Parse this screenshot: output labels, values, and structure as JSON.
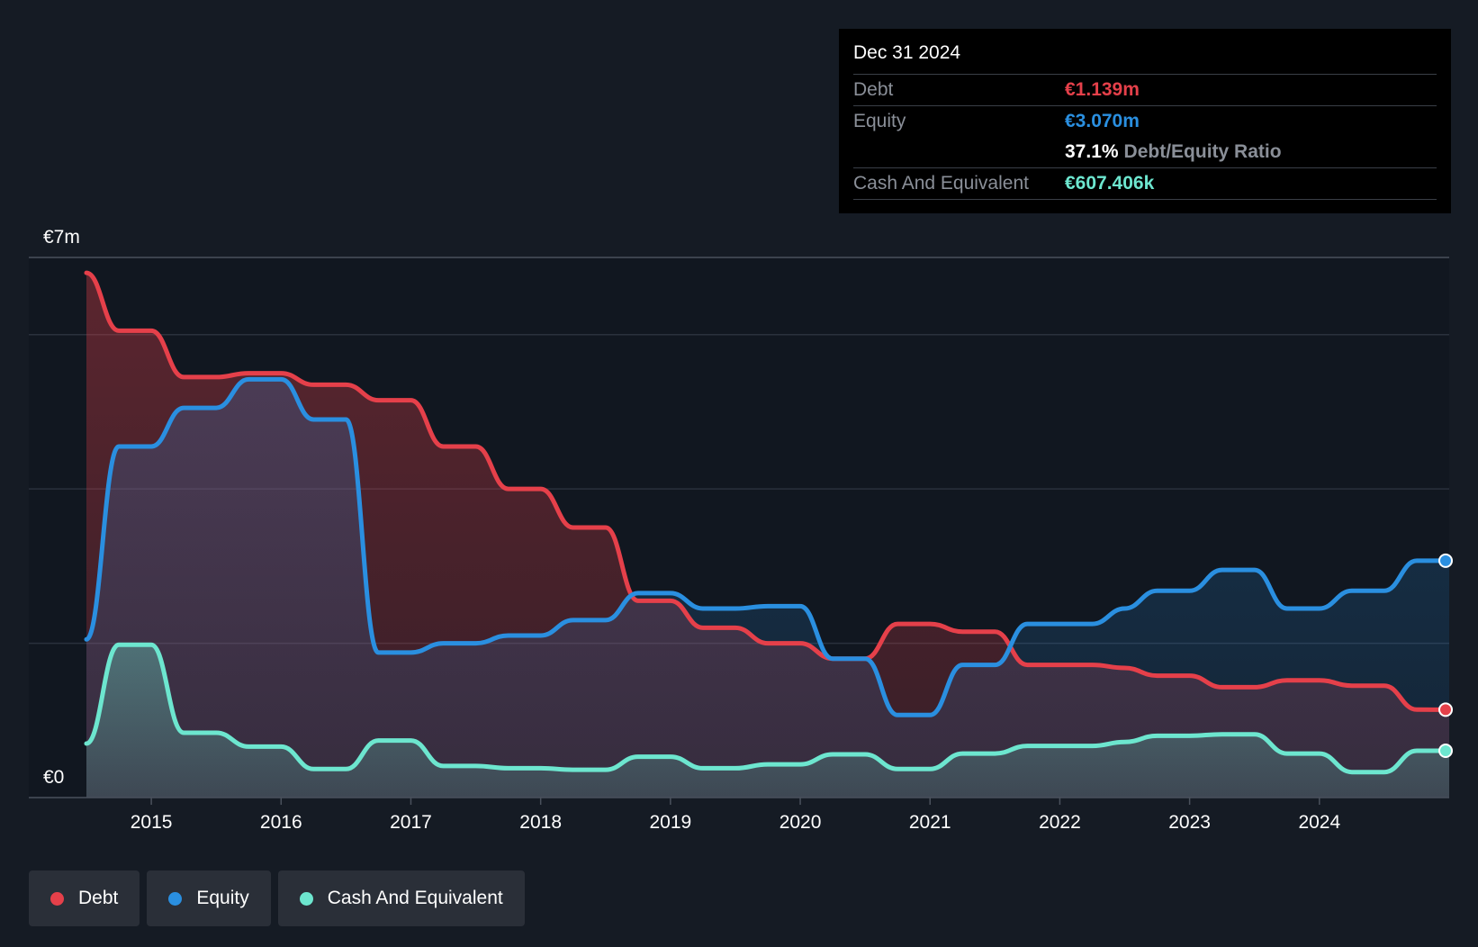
{
  "tooltip": {
    "date": "Dec 31 2024",
    "debt_label": "Debt",
    "debt_value": "€1.139m",
    "equity_label": "Equity",
    "equity_value": "€3.070m",
    "ratio_value": "37.1%",
    "ratio_label": "Debt/Equity Ratio",
    "cash_label": "Cash And Equivalent",
    "cash_value": "€607.406k"
  },
  "legend": [
    {
      "label": "Debt",
      "color": "#e5404a"
    },
    {
      "label": "Equity",
      "color": "#2a8fe0"
    },
    {
      "label": "Cash And Equivalent",
      "color": "#6de6cf"
    }
  ],
  "colors": {
    "background": "#151b24",
    "plot_background": "#111720",
    "debt": "#e5404a",
    "equity": "#2a8fe0",
    "cash": "#6de6cf"
  },
  "chart_data": {
    "type": "line",
    "y_axis_labels": [
      "€0",
      "€7m"
    ],
    "ylim": [
      0,
      7
    ],
    "xlim": [
      2014.5,
      2025.0
    ],
    "x_ticks": [
      2015,
      2016,
      2017,
      2018,
      2019,
      2020,
      2021,
      2022,
      2023,
      2024
    ],
    "grid": true,
    "legend_position": "bottom-left",
    "series": [
      {
        "name": "Debt",
        "points": [
          [
            2014.5,
            6.8
          ],
          [
            2014.75,
            6.05
          ],
          [
            2015.0,
            6.05
          ],
          [
            2015.25,
            5.45
          ],
          [
            2015.5,
            5.45
          ],
          [
            2015.75,
            5.5
          ],
          [
            2016.0,
            5.5
          ],
          [
            2016.25,
            5.35
          ],
          [
            2016.5,
            5.35
          ],
          [
            2016.75,
            5.15
          ],
          [
            2017.0,
            5.15
          ],
          [
            2017.25,
            4.55
          ],
          [
            2017.5,
            4.55
          ],
          [
            2017.75,
            4.0
          ],
          [
            2018.0,
            4.0
          ],
          [
            2018.25,
            3.5
          ],
          [
            2018.5,
            3.5
          ],
          [
            2018.75,
            2.55
          ],
          [
            2019.0,
            2.55
          ],
          [
            2019.25,
            2.2
          ],
          [
            2019.5,
            2.2
          ],
          [
            2019.75,
            2.0
          ],
          [
            2020.0,
            2.0
          ],
          [
            2020.25,
            1.8
          ],
          [
            2020.5,
            1.8
          ],
          [
            2020.75,
            2.25
          ],
          [
            2021.0,
            2.25
          ],
          [
            2021.25,
            2.15
          ],
          [
            2021.5,
            2.15
          ],
          [
            2021.75,
            1.72
          ],
          [
            2022.0,
            1.72
          ],
          [
            2022.25,
            1.72
          ],
          [
            2022.5,
            1.68
          ],
          [
            2022.75,
            1.58
          ],
          [
            2023.0,
            1.58
          ],
          [
            2023.25,
            1.43
          ],
          [
            2023.5,
            1.43
          ],
          [
            2023.75,
            1.52
          ],
          [
            2024.0,
            1.52
          ],
          [
            2024.25,
            1.45
          ],
          [
            2024.5,
            1.45
          ],
          [
            2024.75,
            1.14
          ],
          [
            2025.0,
            1.139
          ]
        ]
      },
      {
        "name": "Equity",
        "points": [
          [
            2014.5,
            2.05
          ],
          [
            2014.75,
            4.55
          ],
          [
            2015.0,
            4.55
          ],
          [
            2015.25,
            5.05
          ],
          [
            2015.5,
            5.05
          ],
          [
            2015.75,
            5.42
          ],
          [
            2016.0,
            5.42
          ],
          [
            2016.25,
            4.9
          ],
          [
            2016.5,
            4.9
          ],
          [
            2016.75,
            1.88
          ],
          [
            2017.0,
            1.88
          ],
          [
            2017.25,
            2.0
          ],
          [
            2017.5,
            2.0
          ],
          [
            2017.75,
            2.1
          ],
          [
            2018.0,
            2.1
          ],
          [
            2018.25,
            2.3
          ],
          [
            2018.5,
            2.3
          ],
          [
            2018.75,
            2.65
          ],
          [
            2019.0,
            2.65
          ],
          [
            2019.25,
            2.45
          ],
          [
            2019.5,
            2.45
          ],
          [
            2019.75,
            2.48
          ],
          [
            2020.0,
            2.48
          ],
          [
            2020.25,
            1.8
          ],
          [
            2020.5,
            1.8
          ],
          [
            2020.75,
            1.07
          ],
          [
            2021.0,
            1.07
          ],
          [
            2021.25,
            1.72
          ],
          [
            2021.5,
            1.72
          ],
          [
            2021.75,
            2.25
          ],
          [
            2022.0,
            2.25
          ],
          [
            2022.25,
            2.25
          ],
          [
            2022.5,
            2.45
          ],
          [
            2022.75,
            2.68
          ],
          [
            2023.0,
            2.68
          ],
          [
            2023.25,
            2.95
          ],
          [
            2023.5,
            2.95
          ],
          [
            2023.75,
            2.45
          ],
          [
            2024.0,
            2.45
          ],
          [
            2024.25,
            2.68
          ],
          [
            2024.5,
            2.68
          ],
          [
            2024.75,
            3.07
          ],
          [
            2025.0,
            3.07
          ]
        ]
      },
      {
        "name": "Cash And Equivalent",
        "points": [
          [
            2014.5,
            0.7
          ],
          [
            2014.75,
            1.98
          ],
          [
            2015.0,
            1.98
          ],
          [
            2015.25,
            0.84
          ],
          [
            2015.5,
            0.84
          ],
          [
            2015.75,
            0.66
          ],
          [
            2016.0,
            0.66
          ],
          [
            2016.25,
            0.37
          ],
          [
            2016.5,
            0.37
          ],
          [
            2016.75,
            0.74
          ],
          [
            2017.0,
            0.74
          ],
          [
            2017.25,
            0.41
          ],
          [
            2017.5,
            0.41
          ],
          [
            2017.75,
            0.38
          ],
          [
            2018.0,
            0.38
          ],
          [
            2018.25,
            0.36
          ],
          [
            2018.5,
            0.36
          ],
          [
            2018.75,
            0.53
          ],
          [
            2019.0,
            0.53
          ],
          [
            2019.25,
            0.38
          ],
          [
            2019.5,
            0.38
          ],
          [
            2019.75,
            0.43
          ],
          [
            2020.0,
            0.43
          ],
          [
            2020.25,
            0.56
          ],
          [
            2020.5,
            0.56
          ],
          [
            2020.75,
            0.37
          ],
          [
            2021.0,
            0.37
          ],
          [
            2021.25,
            0.57
          ],
          [
            2021.5,
            0.57
          ],
          [
            2021.75,
            0.67
          ],
          [
            2022.0,
            0.67
          ],
          [
            2022.25,
            0.67
          ],
          [
            2022.5,
            0.72
          ],
          [
            2022.75,
            0.8
          ],
          [
            2023.0,
            0.8
          ],
          [
            2023.25,
            0.82
          ],
          [
            2023.5,
            0.82
          ],
          [
            2023.75,
            0.57
          ],
          [
            2024.0,
            0.57
          ],
          [
            2024.25,
            0.33
          ],
          [
            2024.5,
            0.33
          ],
          [
            2024.75,
            0.607
          ],
          [
            2025.0,
            0.607
          ]
        ]
      }
    ]
  }
}
